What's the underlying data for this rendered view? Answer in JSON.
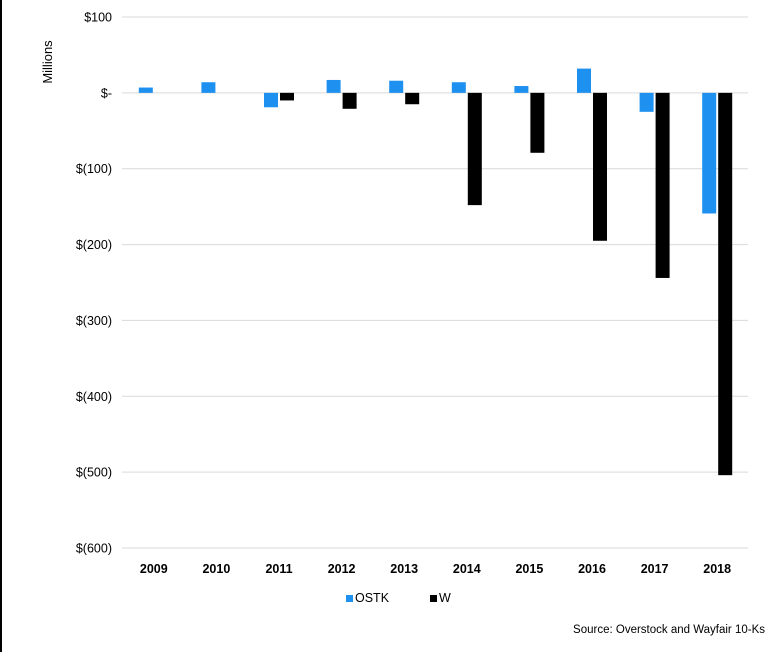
{
  "chart_data": {
    "type": "bar",
    "ylabel": "Millions",
    "ylim": [
      -600,
      100
    ],
    "yticks": [
      100,
      0,
      -100,
      -200,
      -300,
      -400,
      -500,
      -600
    ],
    "ytick_labels": [
      "$100",
      "$-",
      "$(100)",
      "$(200)",
      "$(300)",
      "$(400)",
      "$(500)",
      "$(600)"
    ],
    "categories": [
      "2009",
      "2010",
      "2011",
      "2012",
      "2013",
      "2014",
      "2015",
      "2016",
      "2017",
      "2018"
    ],
    "series": [
      {
        "name": "OSTK",
        "color": "#1e90f0",
        "values": [
          7,
          14,
          -19,
          17,
          16,
          14,
          9,
          32,
          -25,
          -159
        ]
      },
      {
        "name": "W",
        "color": "#000000",
        "values": [
          0,
          0,
          -10,
          -21,
          -15,
          -148,
          -79,
          -195,
          -244,
          -504
        ]
      }
    ],
    "grid": true,
    "legend_position": "bottom",
    "source": "Source: Overstock and Wayfair 10-Ks"
  }
}
